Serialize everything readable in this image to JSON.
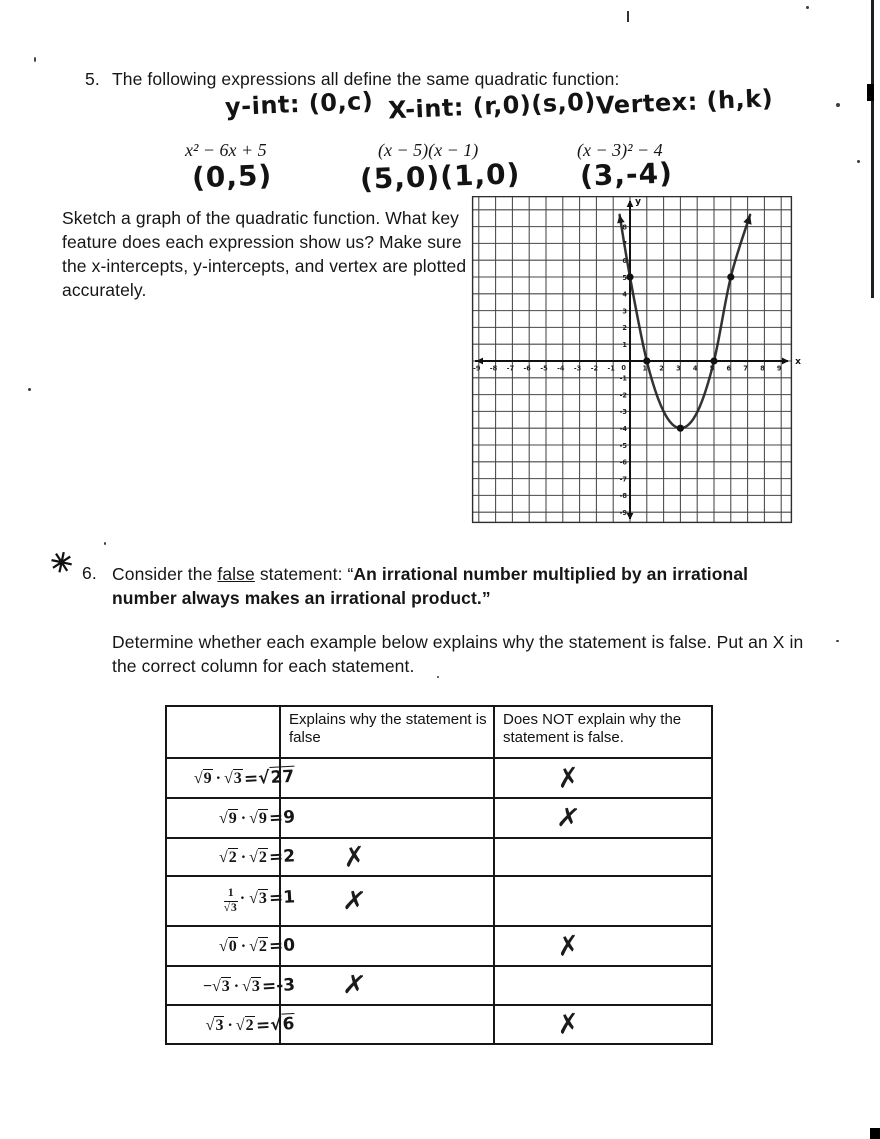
{
  "q5": {
    "number": "5.",
    "prompt": "The following expressions all define the same quadratic function:",
    "handwritten_top": [
      {
        "text": "y-int: (0,c)"
      },
      {
        "text": "X-int: (r,0)(s,0)"
      },
      {
        "text": "Vertex: (h,k)"
      }
    ],
    "expressions": [
      "x² − 6x + 5",
      "(x − 5)(x − 1)",
      "(x − 3)² − 4"
    ],
    "handwritten_values": [
      "(0,5)",
      "(5,0)(1,0)",
      "(3,-4)"
    ],
    "instructions": "Sketch a graph of the quadratic function. What key feature does each expression show us? Make sure the x-intercepts, y-intercepts, and vertex are plotted accurately."
  },
  "chart_data": {
    "type": "line",
    "description": "Hand-sketched parabola of the quadratic function on a coordinate grid",
    "function": "y = (x − 3)² − 4",
    "x_range": [
      -9,
      9
    ],
    "y_range": [
      -9,
      9
    ],
    "grid": true,
    "axis_labels": {
      "x": "x",
      "y": "y"
    },
    "plotted_points": [
      [
        0,
        5
      ],
      [
        1,
        0
      ],
      [
        5,
        0
      ],
      [
        3,
        -4
      ],
      [
        6,
        5
      ]
    ],
    "vertex": [
      3,
      -4
    ],
    "x_intercepts": [
      [
        1,
        0
      ],
      [
        5,
        0
      ]
    ],
    "y_intercept": [
      0,
      5
    ],
    "curve_anchor_points": [
      [
        -0.62,
        8.7
      ],
      [
        0,
        5
      ],
      [
        1,
        0
      ],
      [
        2,
        -3
      ],
      [
        3,
        -4
      ],
      [
        4,
        -3.05
      ],
      [
        5,
        0
      ],
      [
        6,
        5
      ],
      [
        7.15,
        8.7
      ]
    ]
  },
  "q6": {
    "star_mark": "✳",
    "number": "6.",
    "lead": "Consider the ",
    "underlined": "false",
    "after_underline": " statement: “",
    "bold_line1": "An irrational number multiplied by an irrational",
    "bold_line2": "number always makes an irrational product.”",
    "determine": "Determine whether each example below explains why the statement is false. Put an X in the correct column for each statement."
  },
  "table": {
    "headers": [
      "",
      "Explains why the statement is false",
      "Does NOT explain why the statement is false."
    ],
    "rows": [
      {
        "expr": "√9 · √3",
        "result": "=√27",
        "explains": "",
        "not_explains": "✗"
      },
      {
        "expr": "√9 · √9",
        "result": "=9",
        "explains": "",
        "not_explains": "✗"
      },
      {
        "expr": "√2 · √2",
        "result": "=2",
        "explains": "✗",
        "not_explains": ""
      },
      {
        "expr_num": "1",
        "expr_den": "√3",
        "expr": "· √3",
        "result": "=1",
        "explains": "✗",
        "not_explains": ""
      },
      {
        "expr": "√0 · √2",
        "result": "=0",
        "explains": "",
        "not_explains": "✗"
      },
      {
        "expr": "−√3 · √3",
        "result": "=-3",
        "explains": "✗",
        "not_explains": ""
      },
      {
        "expr": "√3 · √2",
        "result": "=√6",
        "explains": "",
        "not_explains": "✗"
      }
    ]
  }
}
